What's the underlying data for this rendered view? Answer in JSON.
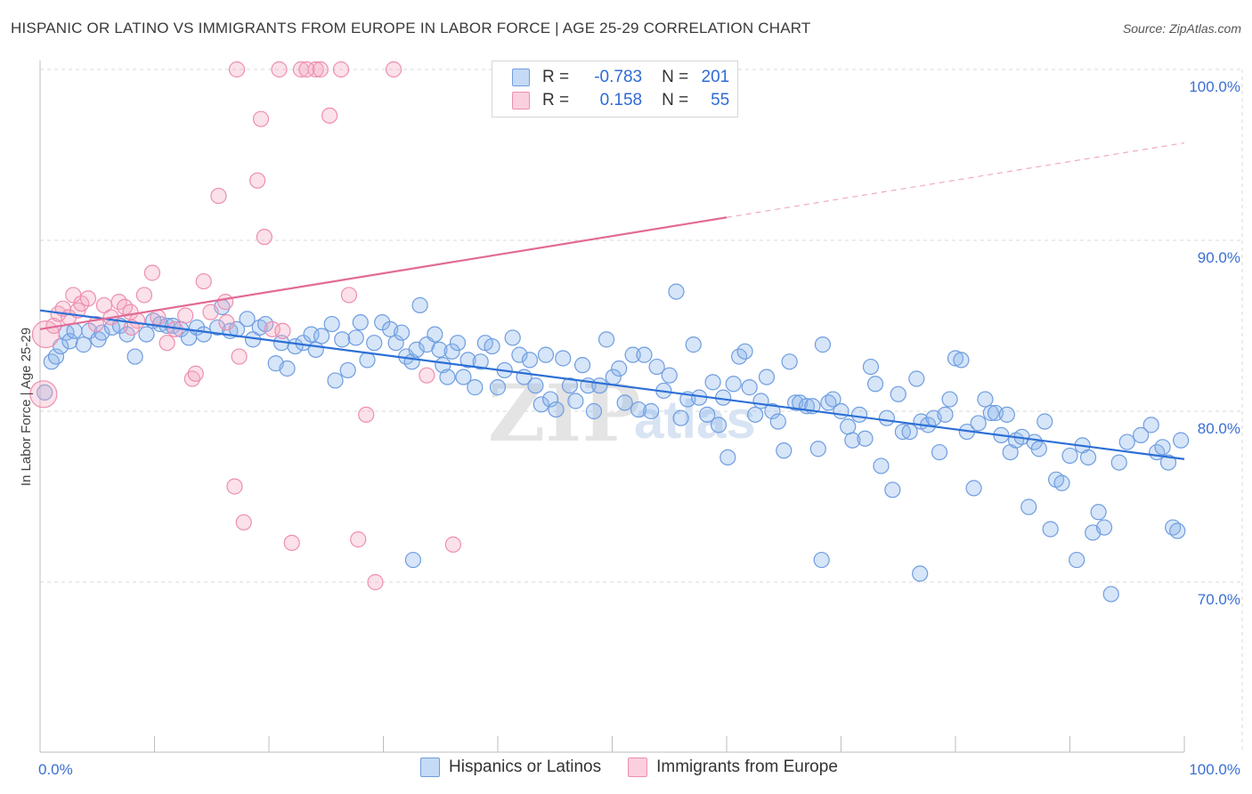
{
  "title": "HISPANIC OR LATINO VS IMMIGRANTS FROM EUROPE IN LABOR FORCE | AGE 25-29 CORRELATION CHART",
  "source": "Source: ZipAtlas.com",
  "legend_top": [
    {
      "r_label": "R =",
      "r_value": "-0.783",
      "n_label": "N =",
      "n_value": "201"
    },
    {
      "r_label": "R =",
      "r_value": "0.158",
      "n_label": "N =",
      "n_value": "55"
    }
  ],
  "legend_bottom": [
    "Hispanics or Latinos",
    "Immigrants from Europe"
  ],
  "colors": {
    "blue": "#8ab4ea",
    "blue_line": "#2c6fd6",
    "pink": "#f4a8c0",
    "pink_line": "#e26a96",
    "grid": "#d8d8d8"
  },
  "chart_data": {
    "type": "scatter",
    "xlabel": "",
    "ylabel": "In Labor Force | Age 25-29",
    "x_tick_labels": [
      "0.0%",
      "100.0%"
    ],
    "y_tick_labels": [
      "70.0%",
      "80.0%",
      "90.0%",
      "100.0%"
    ],
    "xlim": [
      0,
      100
    ],
    "ylim": [
      59.5,
      101
    ],
    "grid": true,
    "series": [
      {
        "name": "Hispanics or Latinos",
        "trend": {
          "x": [
            0,
            100
          ],
          "y": [
            85.9,
            77.2
          ],
          "dashed_from": null
        },
        "points": [
          [
            0.4,
            81.1
          ],
          [
            1.0,
            82.9
          ],
          [
            1.4,
            83.2
          ],
          [
            1.8,
            83.8
          ],
          [
            2.3,
            84.6
          ],
          [
            2.6,
            84.1
          ],
          [
            3.0,
            84.7
          ],
          [
            3.8,
            83.9
          ],
          [
            4.3,
            84.7
          ],
          [
            5.1,
            84.2
          ],
          [
            5.4,
            84.6
          ],
          [
            6.3,
            84.9
          ],
          [
            7.0,
            85.0
          ],
          [
            7.6,
            84.5
          ],
          [
            8.3,
            83.2
          ],
          [
            9.3,
            84.5
          ],
          [
            9.9,
            85.3
          ],
          [
            10.5,
            85.1
          ],
          [
            11.1,
            85.0
          ],
          [
            11.6,
            85.0
          ],
          [
            12.3,
            84.8
          ],
          [
            13.0,
            84.3
          ],
          [
            13.7,
            84.9
          ],
          [
            14.3,
            84.5
          ],
          [
            15.5,
            84.9
          ],
          [
            15.9,
            86.1
          ],
          [
            16.6,
            84.7
          ],
          [
            17.2,
            84.8
          ],
          [
            18.1,
            85.4
          ],
          [
            18.6,
            84.2
          ],
          [
            19.2,
            84.9
          ],
          [
            19.7,
            85.1
          ],
          [
            20.6,
            82.8
          ],
          [
            21.1,
            84.0
          ],
          [
            21.6,
            82.5
          ],
          [
            22.3,
            83.8
          ],
          [
            23.0,
            84.0
          ],
          [
            23.7,
            84.5
          ],
          [
            24.1,
            83.6
          ],
          [
            24.6,
            84.4
          ],
          [
            25.5,
            85.1
          ],
          [
            25.8,
            81.8
          ],
          [
            26.4,
            84.2
          ],
          [
            26.9,
            82.4
          ],
          [
            27.6,
            84.3
          ],
          [
            28.0,
            85.2
          ],
          [
            28.6,
            83.0
          ],
          [
            29.2,
            84.0
          ],
          [
            29.9,
            85.2
          ],
          [
            30.6,
            84.8
          ],
          [
            31.1,
            84.0
          ],
          [
            31.6,
            84.6
          ],
          [
            32.0,
            83.2
          ],
          [
            32.5,
            82.9
          ],
          [
            32.9,
            83.6
          ],
          [
            33.2,
            86.2
          ],
          [
            33.8,
            83.9
          ],
          [
            34.5,
            84.5
          ],
          [
            34.9,
            83.6
          ],
          [
            35.2,
            82.7
          ],
          [
            35.6,
            82.0
          ],
          [
            36.0,
            83.5
          ],
          [
            36.5,
            84.0
          ],
          [
            37.0,
            82.0
          ],
          [
            37.4,
            83.0
          ],
          [
            38.0,
            81.4
          ],
          [
            38.5,
            82.9
          ],
          [
            38.9,
            84.0
          ],
          [
            39.5,
            83.8
          ],
          [
            40.0,
            81.4
          ],
          [
            40.6,
            82.4
          ],
          [
            41.3,
            84.3
          ],
          [
            41.9,
            83.3
          ],
          [
            42.3,
            82.0
          ],
          [
            42.8,
            83.0
          ],
          [
            43.3,
            81.5
          ],
          [
            43.8,
            80.4
          ],
          [
            44.2,
            83.3
          ],
          [
            44.6,
            80.7
          ],
          [
            45.1,
            80.1
          ],
          [
            45.7,
            83.1
          ],
          [
            46.3,
            81.5
          ],
          [
            46.8,
            80.6
          ],
          [
            47.4,
            82.7
          ],
          [
            47.9,
            81.5
          ],
          [
            48.4,
            80.0
          ],
          [
            48.9,
            81.5
          ],
          [
            49.5,
            84.2
          ],
          [
            50.1,
            82.0
          ],
          [
            50.6,
            82.5
          ],
          [
            51.1,
            80.5
          ],
          [
            51.8,
            83.3
          ],
          [
            52.3,
            80.1
          ],
          [
            52.8,
            83.3
          ],
          [
            53.4,
            80.0
          ],
          [
            53.9,
            82.6
          ],
          [
            54.5,
            81.2
          ],
          [
            55.0,
            82.1
          ],
          [
            55.6,
            87.0
          ],
          [
            56.0,
            79.6
          ],
          [
            56.6,
            80.7
          ],
          [
            57.1,
            83.9
          ],
          [
            57.6,
            80.8
          ],
          [
            58.3,
            79.8
          ],
          [
            58.8,
            81.7
          ],
          [
            59.3,
            79.2
          ],
          [
            59.7,
            80.8
          ],
          [
            60.1,
            77.3
          ],
          [
            60.6,
            81.6
          ],
          [
            61.1,
            83.2
          ],
          [
            61.6,
            83.5
          ],
          [
            62.0,
            81.4
          ],
          [
            62.5,
            79.8
          ],
          [
            63.0,
            80.6
          ],
          [
            63.5,
            82.0
          ],
          [
            64.0,
            80.0
          ],
          [
            64.5,
            79.4
          ],
          [
            65.0,
            77.7
          ],
          [
            65.5,
            82.9
          ],
          [
            66.0,
            80.5
          ],
          [
            66.4,
            80.5
          ],
          [
            67.0,
            80.3
          ],
          [
            67.5,
            80.3
          ],
          [
            68.0,
            77.8
          ],
          [
            68.4,
            83.9
          ],
          [
            68.9,
            80.5
          ],
          [
            69.3,
            80.7
          ],
          [
            70.0,
            80.0
          ],
          [
            70.6,
            79.1
          ],
          [
            71.0,
            78.3
          ],
          [
            71.6,
            79.8
          ],
          [
            72.1,
            78.4
          ],
          [
            72.6,
            82.6
          ],
          [
            73.0,
            81.6
          ],
          [
            73.5,
            76.8
          ],
          [
            74.0,
            79.6
          ],
          [
            74.5,
            75.4
          ],
          [
            75.0,
            81.0
          ],
          [
            75.4,
            78.8
          ],
          [
            76.0,
            78.8
          ],
          [
            76.6,
            81.9
          ],
          [
            77.0,
            79.4
          ],
          [
            77.6,
            79.2
          ],
          [
            78.1,
            79.6
          ],
          [
            78.6,
            77.6
          ],
          [
            79.1,
            79.8
          ],
          [
            79.5,
            80.7
          ],
          [
            80.0,
            83.1
          ],
          [
            80.5,
            83.0
          ],
          [
            81.0,
            78.8
          ],
          [
            81.6,
            75.5
          ],
          [
            82.0,
            79.3
          ],
          [
            82.6,
            80.7
          ],
          [
            83.1,
            79.9
          ],
          [
            83.5,
            79.9
          ],
          [
            84.0,
            78.6
          ],
          [
            84.5,
            79.8
          ],
          [
            84.8,
            77.6
          ],
          [
            85.3,
            78.3
          ],
          [
            85.8,
            78.5
          ],
          [
            86.4,
            74.4
          ],
          [
            86.9,
            78.2
          ],
          [
            87.3,
            77.8
          ],
          [
            87.8,
            79.4
          ],
          [
            88.3,
            73.1
          ],
          [
            88.8,
            76.0
          ],
          [
            89.3,
            75.8
          ],
          [
            90.0,
            77.4
          ],
          [
            90.6,
            71.3
          ],
          [
            91.1,
            78.0
          ],
          [
            91.6,
            77.3
          ],
          [
            92.0,
            72.9
          ],
          [
            92.5,
            74.1
          ],
          [
            93.0,
            73.2
          ],
          [
            93.6,
            69.3
          ],
          [
            94.3,
            77.0
          ],
          [
            95.0,
            78.2
          ],
          [
            96.2,
            78.6
          ],
          [
            97.1,
            79.2
          ],
          [
            97.6,
            77.6
          ],
          [
            98.1,
            77.9
          ],
          [
            98.6,
            77.0
          ],
          [
            99.0,
            73.2
          ],
          [
            99.4,
            73.0
          ],
          [
            99.7,
            78.3
          ],
          [
            32.6,
            71.3
          ],
          [
            68.3,
            71.3
          ],
          [
            76.9,
            70.5
          ]
        ]
      },
      {
        "name": "Immigrants from Europe",
        "trend": {
          "x": [
            0,
            100
          ],
          "y": [
            84.8,
            95.7
          ],
          "dashed_from": 60
        },
        "points": [
          [
            0.3,
            81.0
          ],
          [
            0.5,
            84.5
          ],
          [
            1.2,
            85.0
          ],
          [
            1.6,
            85.7
          ],
          [
            2.0,
            86.0
          ],
          [
            2.5,
            85.5
          ],
          [
            2.9,
            86.8
          ],
          [
            3.3,
            85.9
          ],
          [
            3.6,
            86.3
          ],
          [
            4.2,
            86.6
          ],
          [
            4.9,
            85.1
          ],
          [
            5.6,
            86.2
          ],
          [
            6.2,
            85.5
          ],
          [
            6.9,
            86.4
          ],
          [
            7.4,
            86.1
          ],
          [
            7.9,
            85.8
          ],
          [
            8.5,
            85.3
          ],
          [
            9.1,
            86.8
          ],
          [
            9.8,
            88.1
          ],
          [
            10.3,
            85.5
          ],
          [
            11.1,
            84.0
          ],
          [
            11.8,
            84.8
          ],
          [
            12.7,
            85.6
          ],
          [
            13.3,
            81.9
          ],
          [
            13.6,
            82.2
          ],
          [
            14.3,
            87.6
          ],
          [
            14.9,
            85.8
          ],
          [
            15.6,
            92.6
          ],
          [
            16.2,
            86.4
          ],
          [
            16.3,
            85.2
          ],
          [
            17.0,
            75.6
          ],
          [
            17.4,
            83.2
          ],
          [
            17.8,
            73.5
          ],
          [
            19.0,
            93.5
          ],
          [
            19.3,
            97.1
          ],
          [
            19.6,
            90.2
          ],
          [
            20.3,
            84.8
          ],
          [
            21.2,
            84.7
          ],
          [
            22.0,
            72.3
          ],
          [
            22.8,
            100.0
          ],
          [
            24.1,
            100.0
          ],
          [
            24.5,
            100.0
          ],
          [
            25.3,
            97.3
          ],
          [
            26.3,
            100.0
          ],
          [
            27.0,
            86.8
          ],
          [
            27.8,
            72.5
          ],
          [
            28.5,
            79.8
          ],
          [
            29.3,
            70.0
          ],
          [
            30.9,
            100.0
          ],
          [
            33.8,
            82.1
          ],
          [
            36.1,
            72.2
          ],
          [
            20.9,
            100.0
          ],
          [
            17.2,
            100.0
          ],
          [
            23.3,
            100.0
          ],
          [
            8.0,
            84.9
          ]
        ]
      }
    ]
  }
}
